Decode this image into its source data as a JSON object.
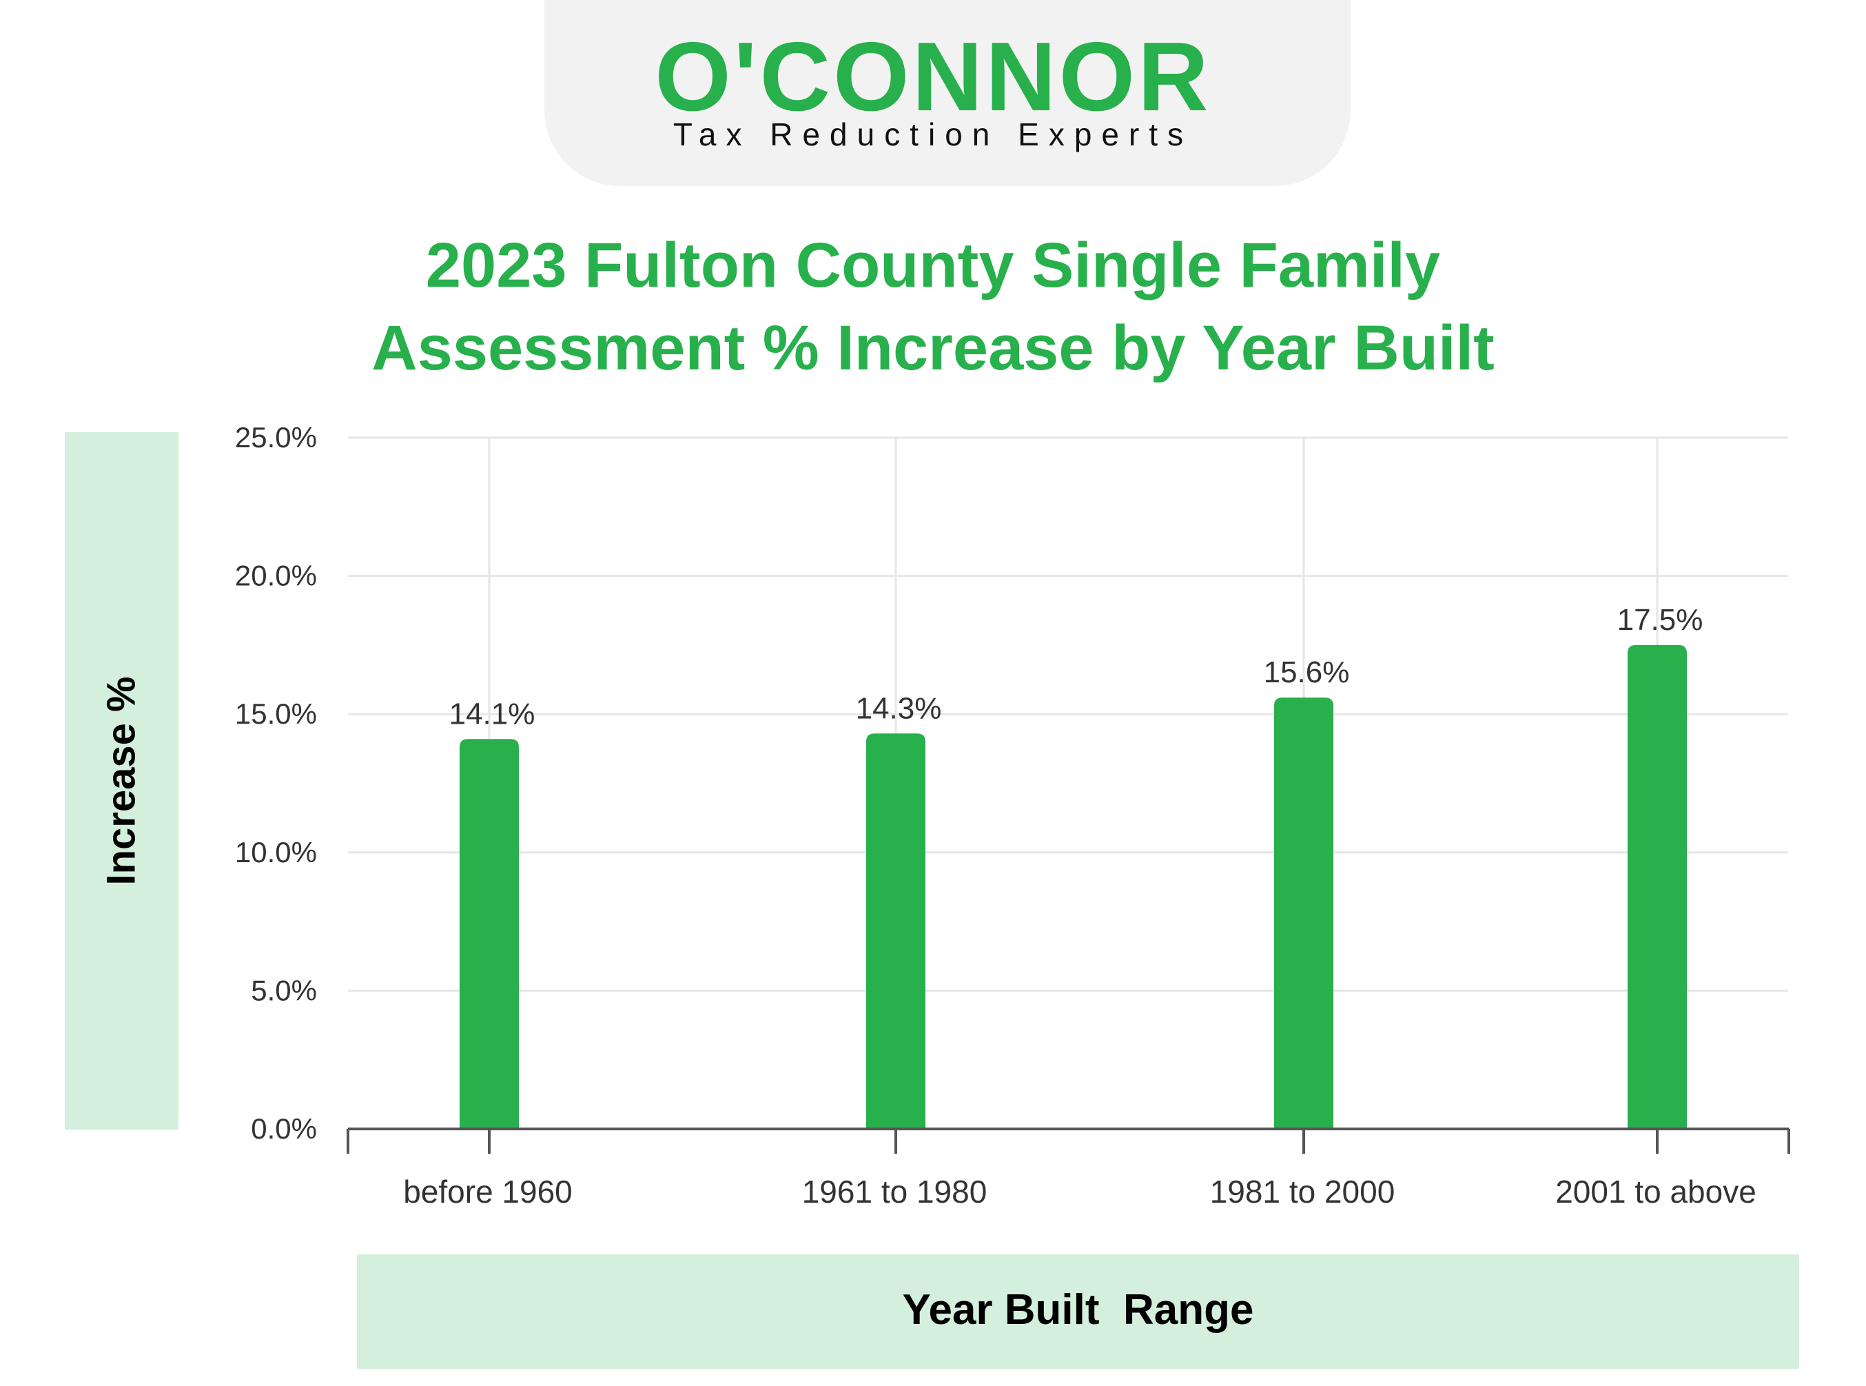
{
  "logo": {
    "brand": "O'CONNOR",
    "tagline": "Tax Reduction Experts"
  },
  "colors": {
    "accent": "#27b04b",
    "label_band": "#d5efdd",
    "grid": "#e6e6e6",
    "axis": "#555555"
  },
  "chart_data": {
    "type": "bar",
    "title": "2023 Fulton County Single Family Assessment % Increase by Year Built",
    "title_lines": [
      "2023 Fulton County Single Family",
      "Assessment % Increase by Year Built"
    ],
    "xlabel": "Year Built  Range",
    "ylabel": "Increase %",
    "categories": [
      "before 1960",
      "1961 to 1980",
      "1981 to 2000",
      "2001 to above"
    ],
    "values": [
      14.1,
      14.3,
      15.6,
      17.5
    ],
    "value_labels": [
      "14.1%",
      "14.3%",
      "15.6%",
      "17.5%"
    ],
    "ylim": [
      0,
      25
    ],
    "y_ticks": [
      0,
      5,
      10,
      15,
      20,
      25
    ],
    "y_tick_labels": [
      "0.0%",
      "5.0%",
      "10.0%",
      "15.0%",
      "20.0%",
      "25.0%"
    ],
    "grid": true,
    "legend": "none"
  }
}
